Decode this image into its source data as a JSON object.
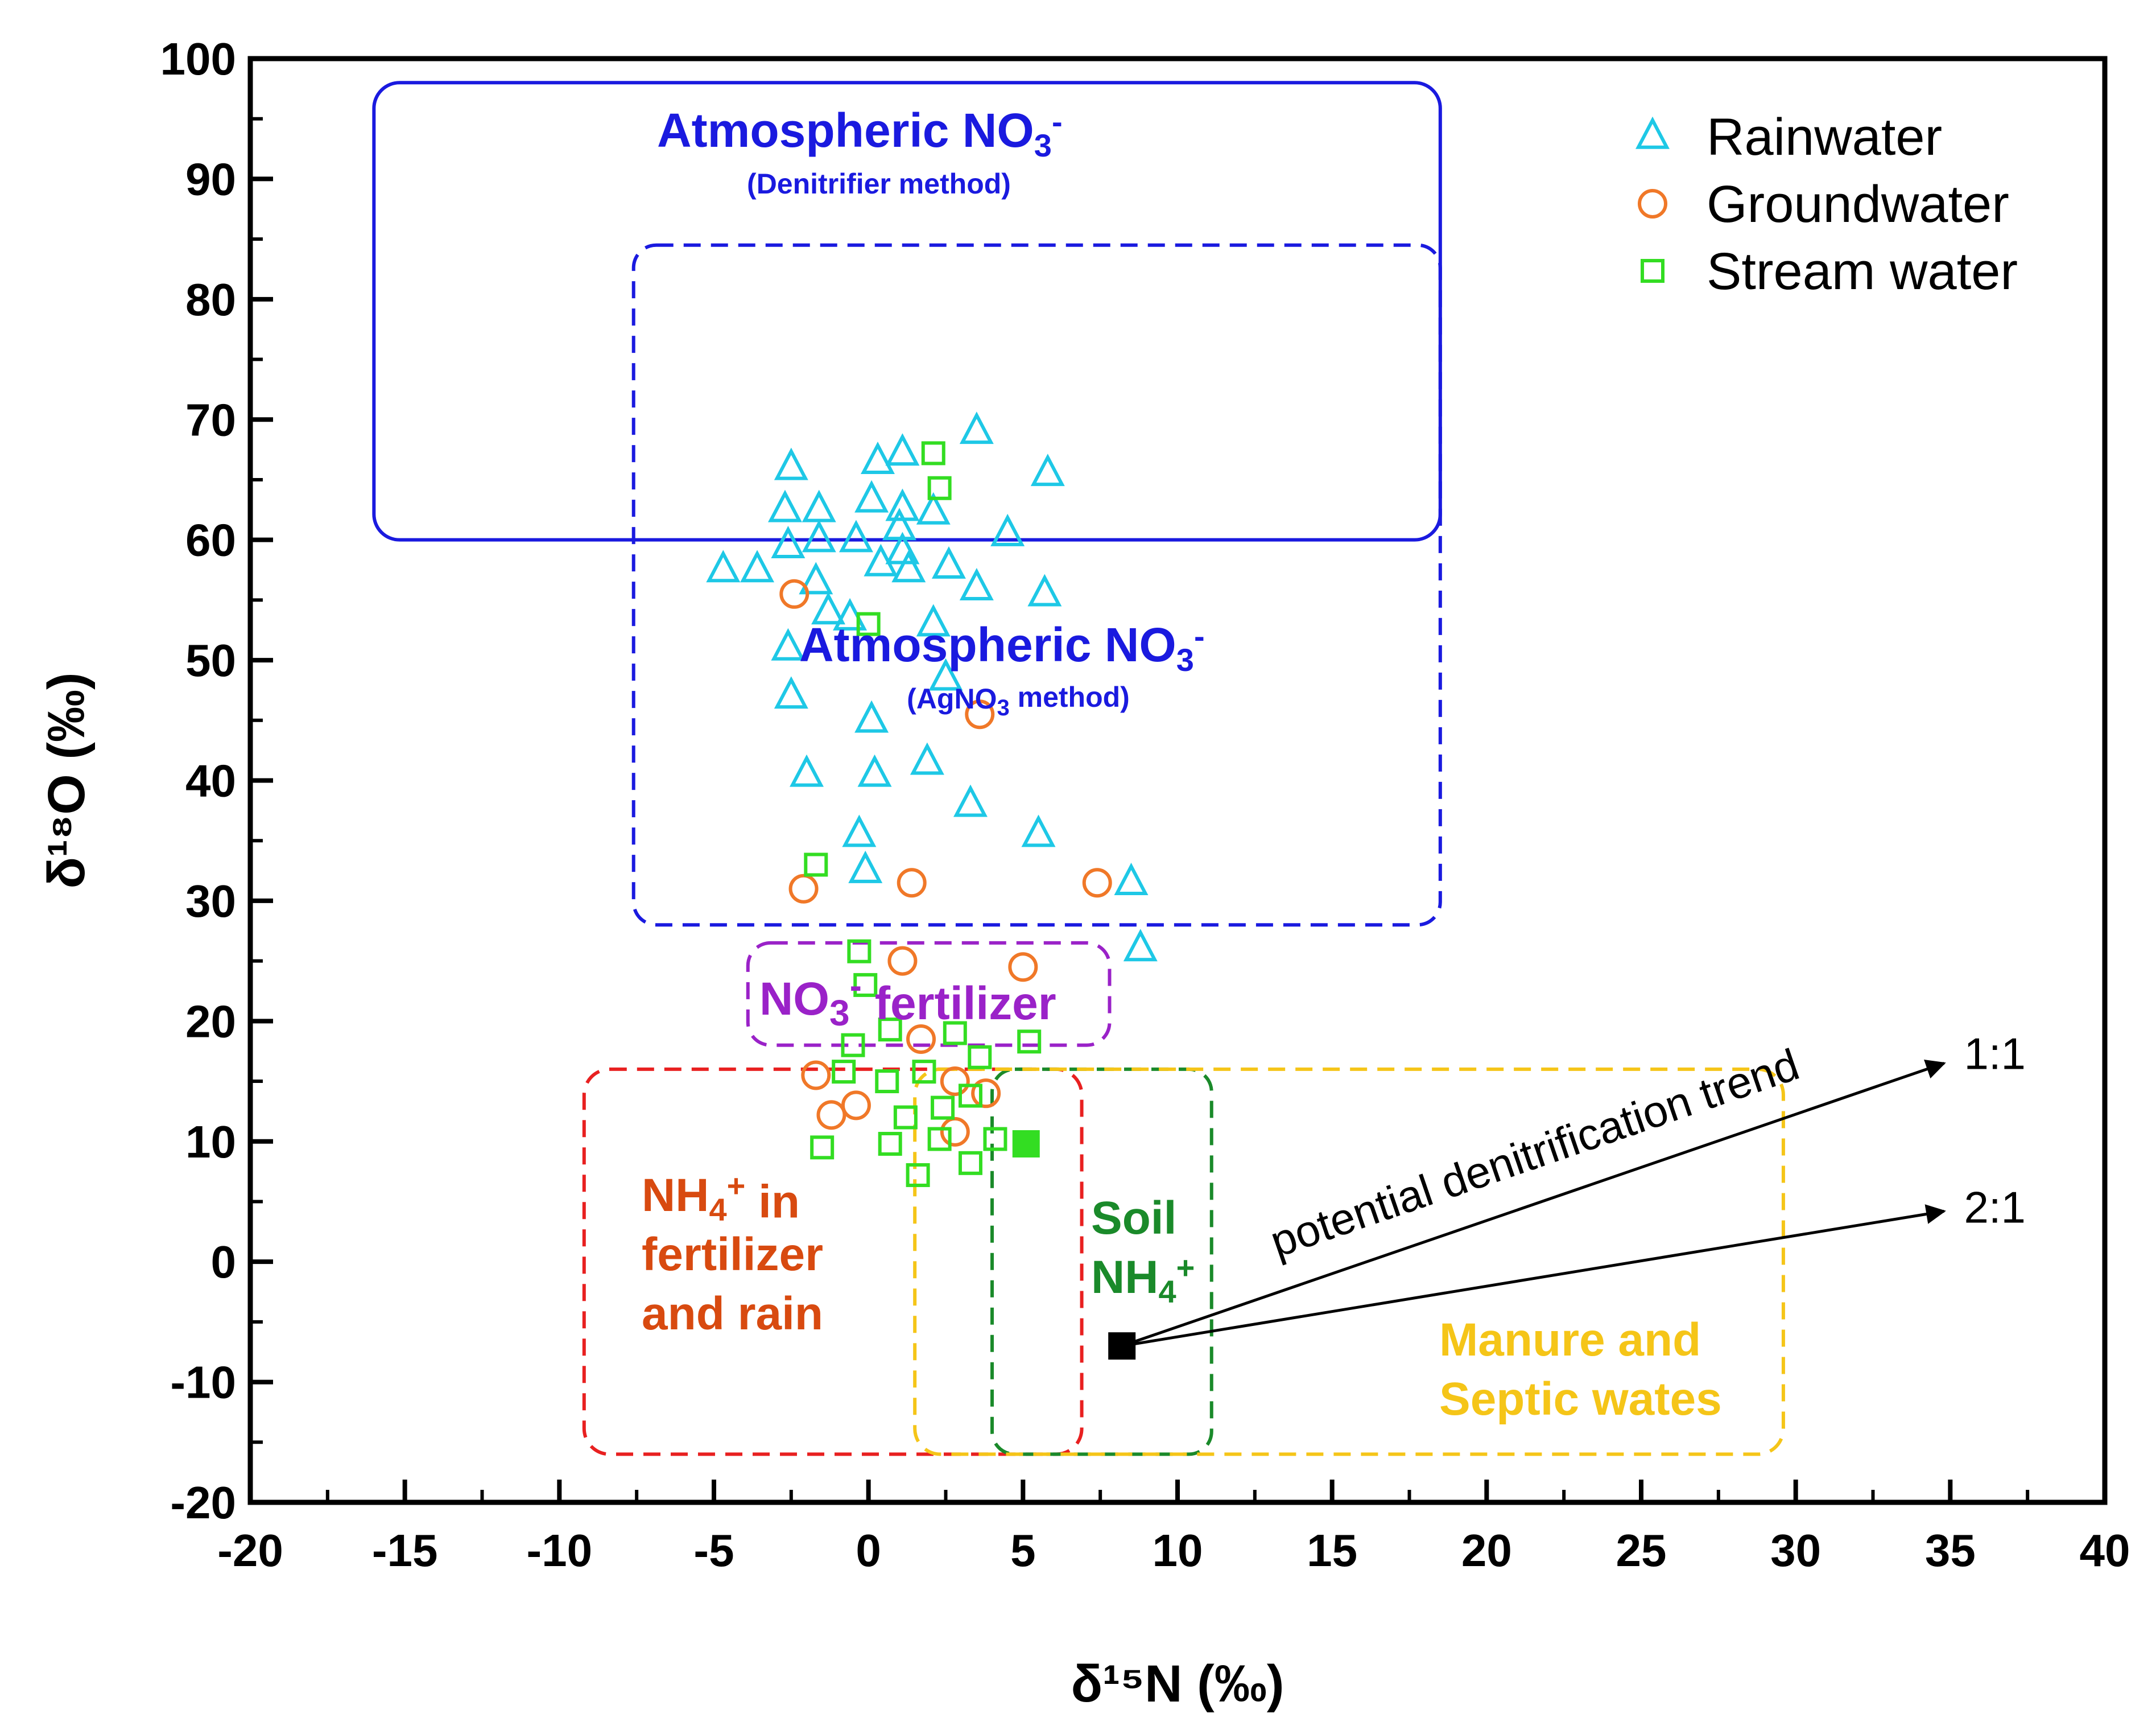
{
  "chart_data": {
    "type": "scatter",
    "xlabel": "δ¹⁵N (‰)",
    "ylabel": "δ¹⁸O (‰)",
    "xlim": [
      -20,
      40
    ],
    "ylim": [
      -20,
      100
    ],
    "x_ticks": [
      -20,
      -15,
      -10,
      -5,
      0,
      5,
      10,
      15,
      20,
      25,
      30,
      35,
      40
    ],
    "y_ticks": [
      -20,
      -10,
      0,
      10,
      20,
      30,
      40,
      50,
      60,
      70,
      80,
      90,
      100
    ],
    "x_tick_labels": [
      "-20",
      "-15",
      "-10",
      "-5",
      "0",
      "5",
      "10",
      "15",
      "20",
      "25",
      "30",
      "35",
      "40"
    ],
    "y_tick_labels": [
      "-20",
      "-10",
      "0",
      "10",
      "20",
      "30",
      "40",
      "50",
      "60",
      "70",
      "80",
      "90",
      "100"
    ],
    "legend": {
      "position": "top-right",
      "entries": [
        {
          "label": "Rainwater",
          "marker": "triangle",
          "color": "#1ec8e6"
        },
        {
          "label": "Groundwater",
          "marker": "circle",
          "color": "#f07828"
        },
        {
          "label": "Stream water",
          "marker": "square",
          "color": "#33dd22"
        }
      ]
    },
    "series": [
      {
        "name": "Rainwater",
        "marker": "triangle",
        "color": "#1ec8e6",
        "points": [
          [
            -2.5,
            66
          ],
          [
            0.3,
            66.5
          ],
          [
            1.1,
            67.2
          ],
          [
            3.5,
            69
          ],
          [
            5.8,
            65.5
          ],
          [
            -2.7,
            62.5
          ],
          [
            -1.6,
            62.5
          ],
          [
            0.1,
            63.3
          ],
          [
            1.1,
            62.6
          ],
          [
            2.1,
            62.3
          ],
          [
            -2.6,
            59.5
          ],
          [
            -1.6,
            60
          ],
          [
            -0.4,
            60
          ],
          [
            1.0,
            61
          ],
          [
            1.1,
            59
          ],
          [
            4.5,
            60.5
          ],
          [
            -4.7,
            57.5
          ],
          [
            -3.6,
            57.5
          ],
          [
            0.4,
            58
          ],
          [
            1.3,
            57.5
          ],
          [
            2.6,
            57.8
          ],
          [
            3.5,
            56
          ],
          [
            -1.7,
            56.5
          ],
          [
            5.7,
            55.5
          ],
          [
            -1.3,
            54
          ],
          [
            -0.6,
            53.5
          ],
          [
            2.1,
            53
          ],
          [
            -2.6,
            51
          ],
          [
            2.5,
            48.5
          ],
          [
            -2.5,
            47
          ],
          [
            0.1,
            45
          ],
          [
            -2.0,
            40.5
          ],
          [
            0.2,
            40.5
          ],
          [
            1.9,
            41.5
          ],
          [
            3.3,
            38
          ],
          [
            -0.3,
            35.5
          ],
          [
            5.5,
            35.5
          ],
          [
            -0.1,
            32.5
          ],
          [
            8.5,
            31.5
          ],
          [
            8.8,
            26
          ]
        ]
      },
      {
        "name": "Groundwater",
        "marker": "circle",
        "color": "#f07828",
        "points": [
          [
            -2.4,
            55.5
          ],
          [
            3.6,
            45.5
          ],
          [
            -2.1,
            31
          ],
          [
            1.4,
            31.5
          ],
          [
            7.4,
            31.5
          ],
          [
            1.1,
            25
          ],
          [
            5.0,
            24.5
          ],
          [
            1.7,
            18.5
          ],
          [
            -1.7,
            15.5
          ],
          [
            2.8,
            15
          ],
          [
            3.8,
            14
          ],
          [
            -0.4,
            13
          ],
          [
            -1.2,
            12.2
          ],
          [
            2.8,
            10.8
          ]
        ]
      },
      {
        "name": "Stream water",
        "marker": "square",
        "color": "#33dd22",
        "points": [
          [
            2.1,
            67.2
          ],
          [
            2.3,
            64.3
          ],
          [
            0,
            53
          ],
          [
            -1.7,
            33
          ],
          [
            -0.3,
            25.8
          ],
          [
            -0.1,
            23
          ],
          [
            0.7,
            19.3
          ],
          [
            2.8,
            19
          ],
          [
            -0.5,
            18
          ],
          [
            5.2,
            18.3
          ],
          [
            3.6,
            17
          ],
          [
            -0.8,
            15.8
          ],
          [
            1.8,
            15.8
          ],
          [
            0.6,
            15
          ],
          [
            3.3,
            13.8
          ],
          [
            2.4,
            12.8
          ],
          [
            1.2,
            12
          ],
          [
            -1.5,
            9.5
          ],
          [
            0.7,
            9.8
          ],
          [
            2.3,
            10.2
          ],
          [
            4.1,
            10.2
          ],
          [
            1.6,
            7.2
          ],
          [
            3.3,
            8.2
          ]
        ]
      },
      {
        "name": "Stream water (filled)",
        "marker": "square-filled",
        "color": "#33dd22",
        "points": [
          [
            5.1,
            9.8
          ]
        ]
      },
      {
        "name": "Origin point",
        "marker": "square-filled",
        "color": "#000000",
        "points": [
          [
            8.2,
            -7
          ]
        ]
      }
    ],
    "regions": [
      {
        "id": "atm-denitrifier",
        "label": "Atmospheric NO₃⁻",
        "sublabel": "(Denitrifier method)",
        "x_range": [
          -16,
          18.5
        ],
        "y_range": [
          60,
          98
        ],
        "style": "solid",
        "color": "#1a1adf"
      },
      {
        "id": "atm-agno3",
        "label": "Atmospheric NO₃⁻",
        "sublabel": "(AgNO₃ method)",
        "x_range": [
          -7.6,
          18.5
        ],
        "y_range": [
          28,
          84.5
        ],
        "style": "dashed",
        "color": "#1a1adf"
      },
      {
        "id": "no3-fertilizer",
        "label": "NO₃⁻ fertilizer",
        "x_range": [
          -3.9,
          7.8
        ],
        "y_range": [
          18,
          26.5
        ],
        "style": "dashed",
        "color": "#9a22c8"
      },
      {
        "id": "nh4-fertilizer-rain",
        "label_lines": [
          "NH₄⁺ in",
          "fertilizer",
          "and rain"
        ],
        "x_range": [
          -9.2,
          6.9
        ],
        "y_range": [
          -16,
          16
        ],
        "style": "dashed",
        "color": "#e82020"
      },
      {
        "id": "soil-nh4",
        "label_lines": [
          "Soil",
          "NH₄⁺"
        ],
        "x_range": [
          4,
          11.1
        ],
        "y_range": [
          -16,
          16
        ],
        "style": "dashed",
        "color": "#1a8a2a"
      },
      {
        "id": "manure-septic",
        "label_lines": [
          "Manure and",
          "Septic wates"
        ],
        "x_range": [
          1.5,
          29.6
        ],
        "y_range": [
          -16,
          16
        ],
        "style": "dashed",
        "color": "#f5c518"
      }
    ],
    "annotations": {
      "trend_text": "potential denitrification trend",
      "arrow_1_label": "1:1",
      "arrow_2_label": "2:1",
      "arrow_origin": [
        8.2,
        -7
      ],
      "arrow_1_end": [
        34.8,
        16.5
      ],
      "arrow_2_end": [
        34.8,
        4.2
      ]
    }
  }
}
